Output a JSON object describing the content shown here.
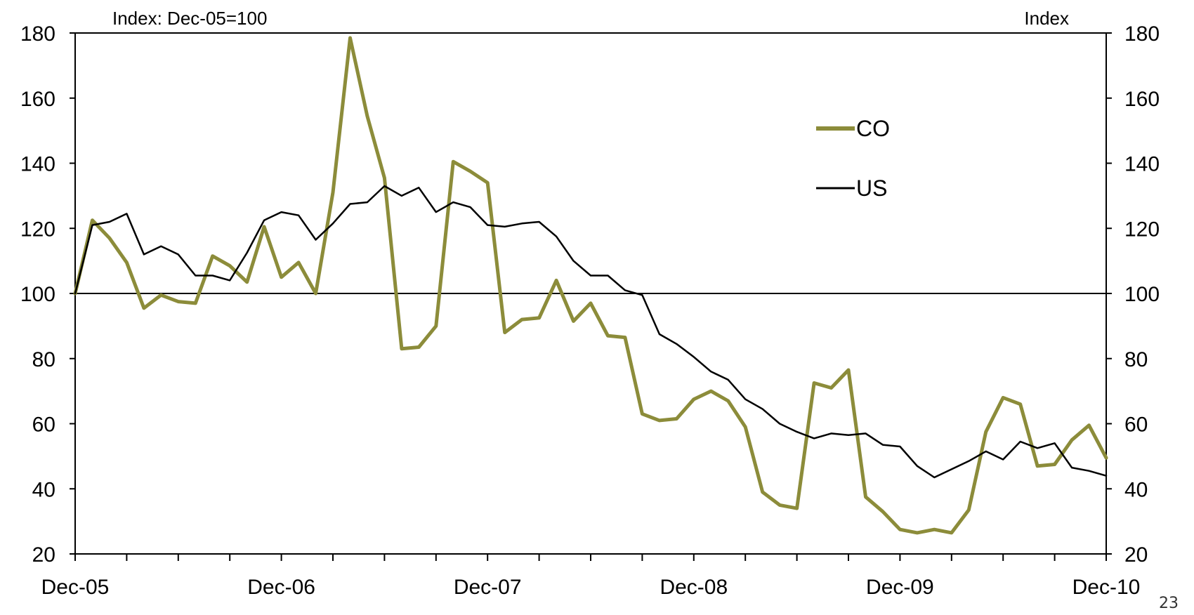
{
  "chart_data": {
    "type": "line",
    "left_axis_label": "Index: Dec-05=100",
    "right_axis_label": "Index",
    "x_tick_labels": [
      "Dec-05",
      "Dec-06",
      "Dec-07",
      "Dec-08",
      "Dec-09",
      "Dec-10"
    ],
    "x_start_month": 0,
    "x_end_month": 60,
    "ylim": [
      20,
      180
    ],
    "yticks": [
      20,
      40,
      60,
      80,
      100,
      120,
      140,
      160,
      180
    ],
    "reference_line": 100,
    "legend_position": "upper-right",
    "series": [
      {
        "name": "CO",
        "color": "#8c8c3a",
        "values": [
          100,
          122.5,
          117,
          109.5,
          95.5,
          99.5,
          97.5,
          97,
          111.5,
          108.5,
          103.5,
          120.5,
          105,
          109.5,
          100,
          131,
          178.5,
          154.5,
          135.5,
          83,
          83.5,
          90,
          140.5,
          137.5,
          134,
          88,
          92,
          92.5,
          104,
          91.5,
          97,
          87,
          86.5,
          63,
          61,
          61.5,
          67.5,
          70,
          67,
          59,
          39,
          35,
          34,
          72.5,
          71,
          76.5,
          37.5,
          33,
          27.5,
          26.5,
          27.5,
          26.5,
          33.5,
          57.5,
          68,
          66,
          47,
          47.5,
          55,
          59.5,
          49.5
        ]
      },
      {
        "name": "US",
        "color": "#000000",
        "values": [
          100,
          121,
          122,
          124.5,
          112,
          114.5,
          112,
          105.5,
          105.5,
          104,
          112.5,
          122.5,
          125,
          124,
          116.5,
          121.5,
          127.5,
          128,
          133,
          130,
          132.5,
          125,
          128,
          126.5,
          121,
          120.5,
          121.5,
          122,
          117.5,
          110,
          105.5,
          105.5,
          101,
          99.5,
          87.5,
          84.5,
          80.5,
          76,
          73.5,
          67.5,
          64.5,
          60,
          57.5,
          55.5,
          57,
          56.5,
          57,
          53.5,
          53,
          47,
          43.5,
          46,
          48.5,
          51.5,
          49,
          54.5,
          52.5,
          54,
          46.5,
          45.5,
          44
        ]
      }
    ]
  },
  "page_number": "23"
}
